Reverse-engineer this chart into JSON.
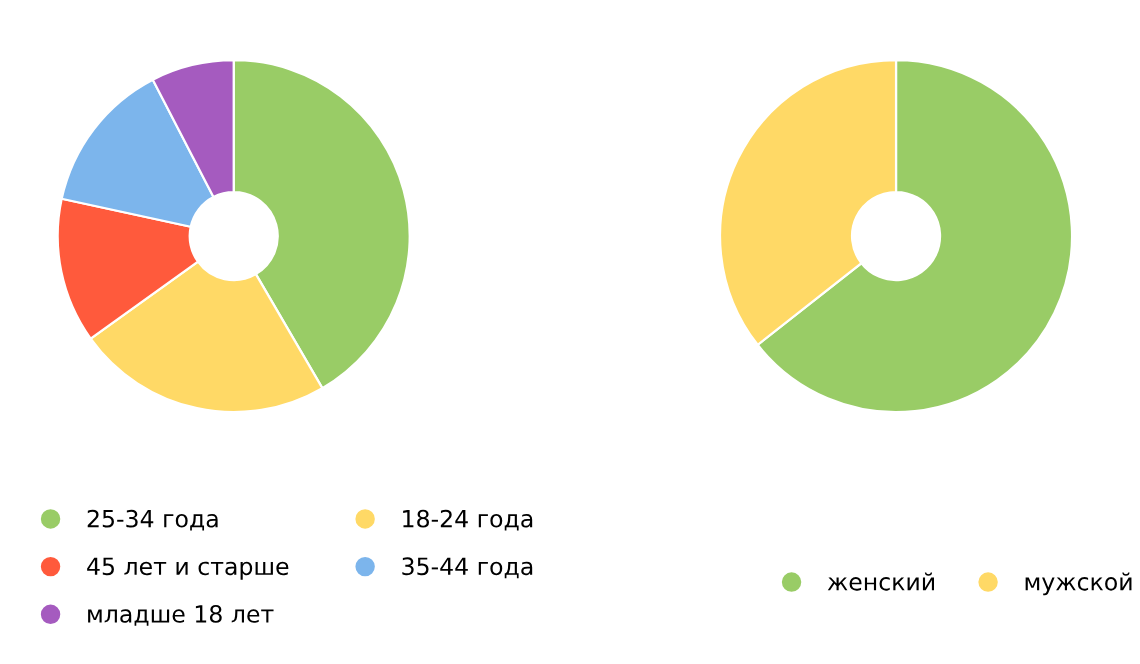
{
  "chart_data": [
    {
      "type": "donut",
      "categories": [
        "25-34 года",
        "18-24 года",
        "45 лет и старше",
        "35-44 года",
        "младше 18 лет"
      ],
      "values": [
        41.6,
        23.5,
        13.3,
        14.0,
        7.6
      ],
      "colors": [
        "#99cc66",
        "#ffd966",
        "#ff5a3c",
        "#7cb5ec",
        "#a55bbf"
      ],
      "legend": "bottom"
    },
    {
      "type": "donut",
      "categories": [
        "женский",
        "мужской"
      ],
      "values": [
        64.4,
        35.6
      ],
      "colors": [
        "#99cc66",
        "#ffd966"
      ],
      "legend": "bottom"
    }
  ]
}
